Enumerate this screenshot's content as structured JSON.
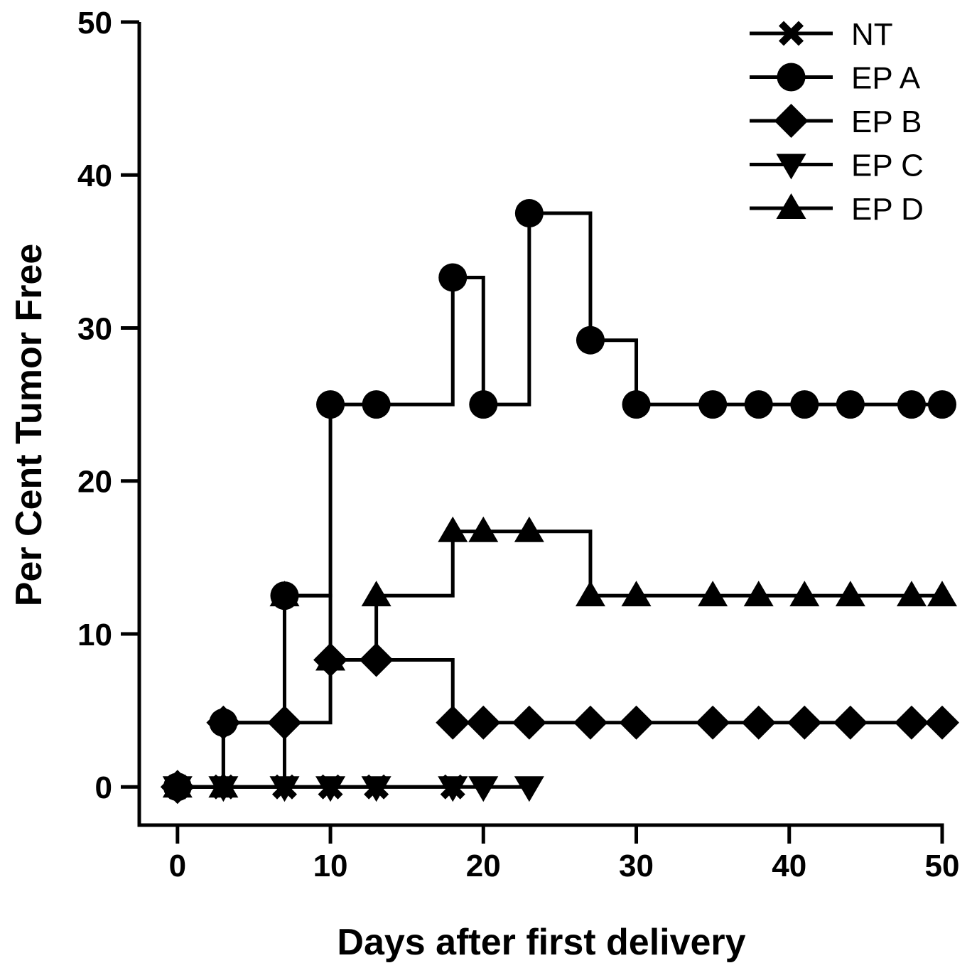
{
  "chart_data": {
    "type": "line",
    "step": true,
    "title": "",
    "xlabel": "Days after first delivery",
    "ylabel": "Per Cent Tumor Free",
    "xlim": [
      -2.5,
      50
    ],
    "ylim": [
      -2.5,
      50
    ],
    "xticks": [
      0,
      10,
      20,
      30,
      40,
      50
    ],
    "yticks": [
      0,
      10,
      20,
      30,
      40,
      50
    ],
    "legend_position": "top-right",
    "line_color": "#000000",
    "series": [
      {
        "name": "NT",
        "marker": "x",
        "x": [
          0,
          3,
          7,
          10,
          13,
          18
        ],
        "y": [
          0,
          0,
          0,
          0,
          0,
          0
        ]
      },
      {
        "name": "EP A",
        "marker": "circle",
        "x": [
          0,
          3,
          7,
          10,
          13,
          18,
          20,
          23,
          27,
          30,
          35,
          38,
          41,
          44,
          48,
          50
        ],
        "y": [
          0,
          4.2,
          12.5,
          25,
          25,
          33.3,
          25,
          37.5,
          29.2,
          25,
          25,
          25,
          25,
          25,
          25,
          25
        ]
      },
      {
        "name": "EP B",
        "marker": "diamond",
        "x": [
          0,
          3,
          7,
          10,
          13,
          18,
          20,
          23,
          27,
          30,
          35,
          38,
          41,
          44,
          48,
          50
        ],
        "y": [
          0,
          4.2,
          4.2,
          8.3,
          8.3,
          4.2,
          4.2,
          4.2,
          4.2,
          4.2,
          4.2,
          4.2,
          4.2,
          4.2,
          4.2,
          4.2
        ]
      },
      {
        "name": "EP C",
        "marker": "triangle-down",
        "x": [
          0,
          3,
          7,
          10,
          13,
          18,
          20,
          23
        ],
        "y": [
          0,
          0,
          0,
          0,
          0,
          0,
          0,
          0
        ]
      },
      {
        "name": "EP D",
        "marker": "triangle-up",
        "x": [
          0,
          3,
          7,
          10,
          13,
          18,
          20,
          23,
          27,
          30,
          35,
          38,
          41,
          44,
          48,
          50
        ],
        "y": [
          0,
          0,
          12.5,
          8.3,
          12.5,
          16.7,
          16.7,
          16.7,
          12.5,
          12.5,
          12.5,
          12.5,
          12.5,
          12.5,
          12.5,
          12.5
        ]
      }
    ]
  }
}
